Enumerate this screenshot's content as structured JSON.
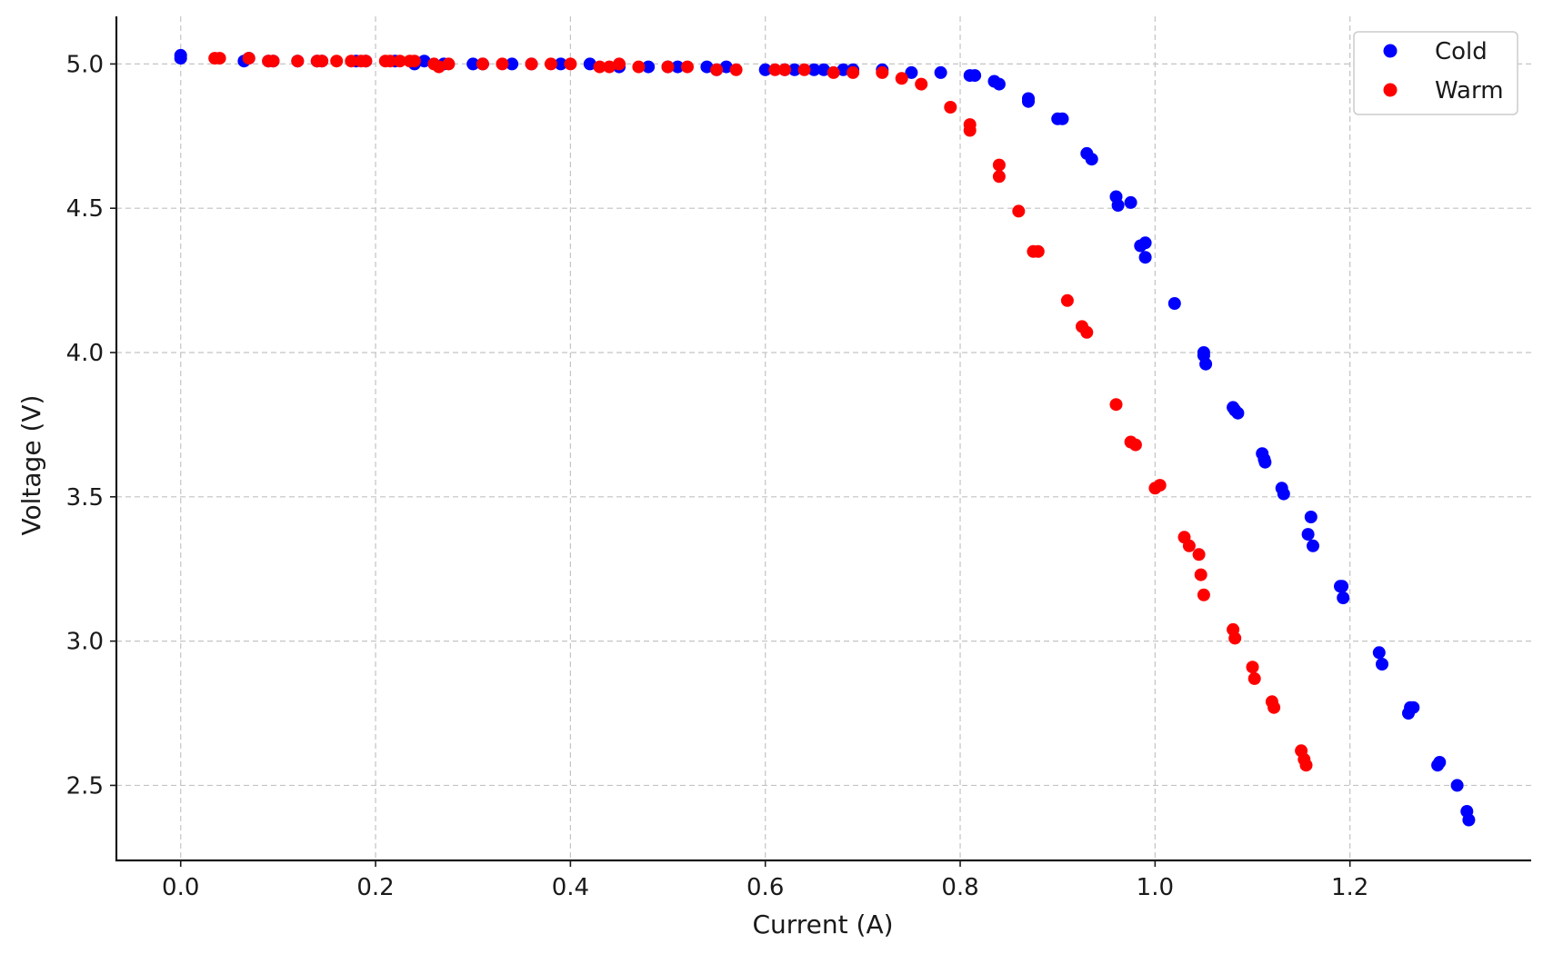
{
  "chart_data": {
    "type": "scatter",
    "title": "",
    "xlabel": "Current (A)",
    "ylabel": "Voltage (V)",
    "xlim": [
      -0.066,
      1.386
    ],
    "ylim": [
      2.24,
      5.165
    ],
    "xticks": [
      0.0,
      0.2,
      0.4,
      0.6,
      0.8,
      1.0,
      1.2
    ],
    "xtick_labels": [
      "0.0",
      "0.2",
      "0.4",
      "0.6",
      "0.8",
      "1.0",
      "1.2"
    ],
    "yticks": [
      2.5,
      3.0,
      3.5,
      4.0,
      4.5,
      5.0
    ],
    "ytick_labels": [
      "2.5",
      "3.0",
      "3.5",
      "4.0",
      "4.5",
      "5.0"
    ],
    "grid": true,
    "legend_position": "top-right",
    "series": [
      {
        "name": "Cold",
        "color": "#0000ff",
        "x": [
          0.0,
          0.0,
          0.065,
          0.07,
          0.09,
          0.095,
          0.12,
          0.14,
          0.145,
          0.18,
          0.19,
          0.22,
          0.24,
          0.25,
          0.27,
          0.3,
          0.31,
          0.34,
          0.36,
          0.39,
          0.42,
          0.45,
          0.48,
          0.5,
          0.51,
          0.54,
          0.55,
          0.56,
          0.6,
          0.62,
          0.63,
          0.65,
          0.66,
          0.68,
          0.69,
          0.72,
          0.75,
          0.78,
          0.81,
          0.815,
          0.835,
          0.84,
          0.87,
          0.87,
          0.9,
          0.905,
          0.93,
          0.935,
          0.96,
          0.962,
          0.975,
          0.985,
          0.99,
          0.99,
          1.02,
          1.05,
          1.05,
          1.052,
          1.08,
          1.082,
          1.085,
          1.11,
          1.112,
          1.113,
          1.13,
          1.132,
          1.157,
          1.16,
          1.162,
          1.19,
          1.192,
          1.193,
          1.23,
          1.233,
          1.26,
          1.262,
          1.265,
          1.29,
          1.292,
          1.31,
          1.32,
          1.322
        ],
        "y": [
          5.03,
          5.02,
          5.01,
          5.02,
          5.01,
          5.01,
          5.01,
          5.01,
          5.01,
          5.01,
          5.01,
          5.01,
          5.0,
          5.01,
          5.0,
          5.0,
          5.0,
          5.0,
          5.0,
          5.0,
          5.0,
          4.99,
          4.99,
          4.99,
          4.99,
          4.99,
          4.98,
          4.99,
          4.98,
          4.98,
          4.98,
          4.98,
          4.98,
          4.98,
          4.98,
          4.98,
          4.97,
          4.97,
          4.96,
          4.96,
          4.94,
          4.93,
          4.88,
          4.87,
          4.81,
          4.81,
          4.69,
          4.67,
          4.54,
          4.51,
          4.52,
          4.37,
          4.38,
          4.33,
          4.17,
          4.0,
          3.99,
          3.96,
          3.81,
          3.8,
          3.79,
          3.65,
          3.63,
          3.62,
          3.53,
          3.51,
          3.37,
          3.43,
          3.33,
          3.19,
          3.19,
          3.15,
          2.96,
          2.92,
          2.75,
          2.77,
          2.77,
          2.57,
          2.58,
          2.5,
          2.41,
          2.38
        ]
      },
      {
        "name": "Warm",
        "color": "#ff0000",
        "x": [
          0.035,
          0.04,
          0.07,
          0.09,
          0.095,
          0.12,
          0.14,
          0.145,
          0.16,
          0.175,
          0.185,
          0.19,
          0.21,
          0.215,
          0.225,
          0.235,
          0.24,
          0.26,
          0.265,
          0.275,
          0.31,
          0.33,
          0.36,
          0.38,
          0.4,
          0.43,
          0.44,
          0.45,
          0.47,
          0.5,
          0.52,
          0.55,
          0.57,
          0.61,
          0.62,
          0.64,
          0.67,
          0.69,
          0.72,
          0.74,
          0.76,
          0.79,
          0.81,
          0.81,
          0.84,
          0.84,
          0.86,
          0.875,
          0.88,
          0.91,
          0.925,
          0.93,
          0.96,
          0.975,
          0.98,
          1.0,
          1.005,
          1.03,
          1.035,
          1.045,
          1.047,
          1.05,
          1.08,
          1.082,
          1.1,
          1.102,
          1.12,
          1.122,
          1.15,
          1.153,
          1.155
        ],
        "y": [
          5.02,
          5.02,
          5.02,
          5.01,
          5.01,
          5.01,
          5.01,
          5.01,
          5.01,
          5.01,
          5.01,
          5.01,
          5.01,
          5.01,
          5.01,
          5.01,
          5.01,
          5.0,
          4.99,
          5.0,
          5.0,
          5.0,
          5.0,
          5.0,
          5.0,
          4.99,
          4.99,
          5.0,
          4.99,
          4.99,
          4.99,
          4.98,
          4.98,
          4.98,
          4.98,
          4.98,
          4.97,
          4.97,
          4.97,
          4.95,
          4.93,
          4.85,
          4.79,
          4.77,
          4.65,
          4.61,
          4.49,
          4.35,
          4.35,
          4.18,
          4.09,
          4.07,
          3.82,
          3.69,
          3.68,
          3.53,
          3.54,
          3.36,
          3.33,
          3.3,
          3.23,
          3.16,
          3.04,
          3.01,
          2.91,
          2.87,
          2.79,
          2.77,
          2.62,
          2.59,
          2.57
        ]
      }
    ]
  }
}
